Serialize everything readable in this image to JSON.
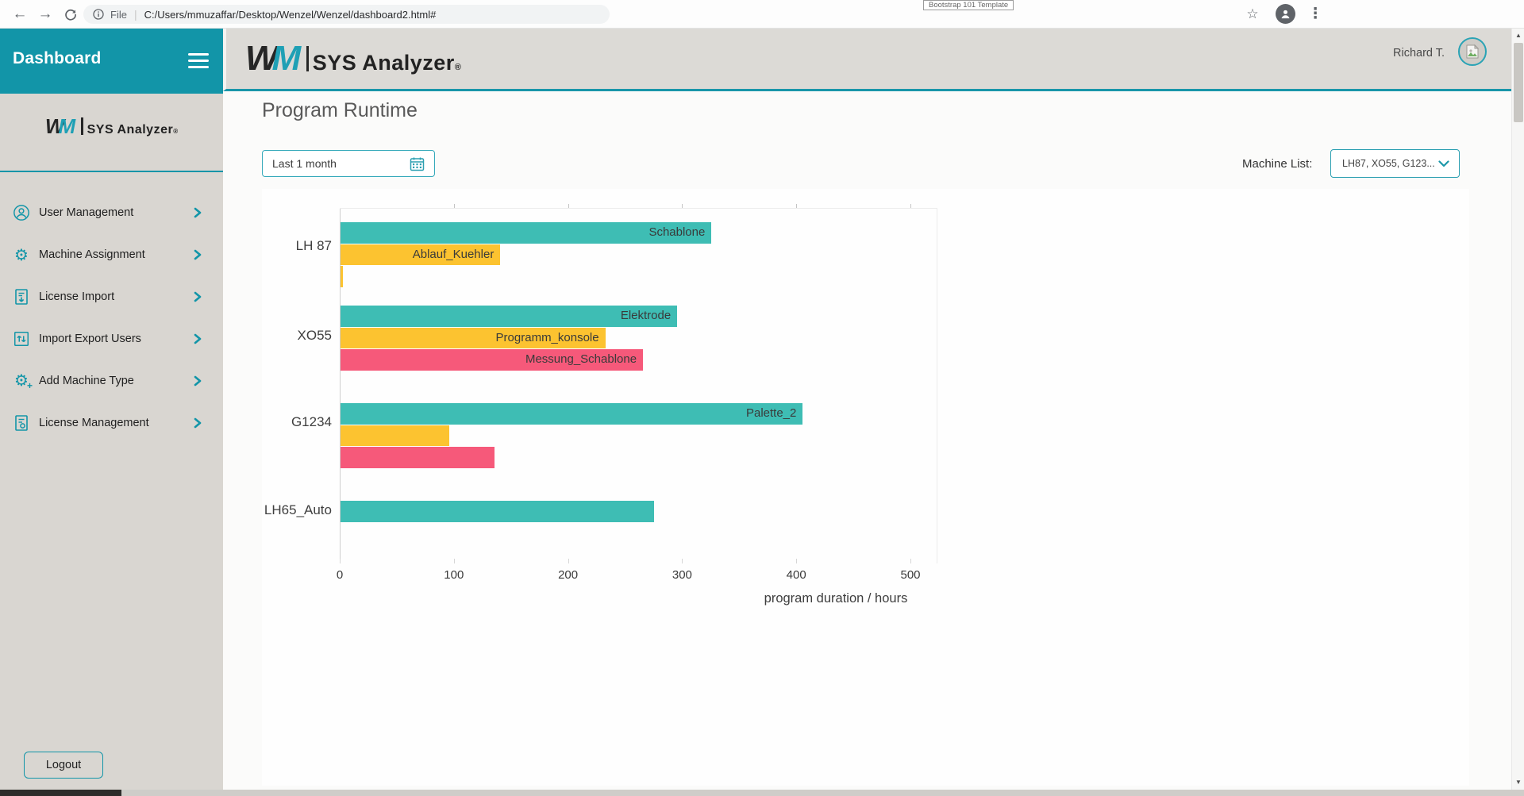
{
  "browser": {
    "back_tooltip": "back",
    "protocol_label": "File",
    "url": "C:/Users/mmuzaffar/Desktop/Wenzel/Wenzel/dashboard2.html#",
    "page_tooltip": "Bootstrap 101 Template"
  },
  "sidebar": {
    "title": "Dashboard",
    "logout_label": "Logout",
    "items": [
      {
        "label": "User Management",
        "icon": "user-icon"
      },
      {
        "label": "Machine Assignment",
        "icon": "gear-icon"
      },
      {
        "label": "License Import",
        "icon": "license-import-icon"
      },
      {
        "label": "Import Export Users",
        "icon": "import-export-icon"
      },
      {
        "label": "Add Machine Type",
        "icon": "add-machine-type-icon"
      },
      {
        "label": "License Management",
        "icon": "license-management-icon"
      }
    ]
  },
  "logo": {
    "w": "W",
    "m": "M",
    "name": "SYS Analyzer",
    "reg": "®"
  },
  "header": {
    "user_name": "Richard T."
  },
  "page": {
    "title": "Program Runtime"
  },
  "filters": {
    "date_range_value": "Last 1 month",
    "machine_list_label": "Machine List:",
    "machine_list_value": "LH87, XO55, G123..."
  },
  "colors": {
    "brand_teal": "#1295a8",
    "bar_teal": "#3ebdb4",
    "bar_yellow": "#fcc330",
    "bar_pink": "#f6597a"
  },
  "chart_data": {
    "type": "bar",
    "orientation": "horizontal",
    "xlabel": "program duration / hours",
    "xlim": [
      0,
      500
    ],
    "xticks": [
      0,
      100,
      200,
      300,
      400,
      500
    ],
    "grid": "ticks-only",
    "legend": "none",
    "categories": [
      "LH 87",
      "XO55",
      "G1234",
      "LH65_Auto"
    ],
    "groups": [
      {
        "machine": "LH 87",
        "bars": [
          {
            "program": "Schablone",
            "hours": 325,
            "color": "teal"
          },
          {
            "program": "Ablauf_Kuehler",
            "hours": 140,
            "color": "yellow"
          },
          {
            "program": "",
            "hours": 2,
            "color": "yellow"
          }
        ]
      },
      {
        "machine": "XO55",
        "bars": [
          {
            "program": "Elektrode",
            "hours": 295,
            "color": "teal"
          },
          {
            "program": "Programm_konsole",
            "hours": 232,
            "color": "yellow"
          },
          {
            "program": "Messung_Schablone",
            "hours": 265,
            "color": "pink"
          }
        ]
      },
      {
        "machine": "G1234",
        "bars": [
          {
            "program": "Palette_2",
            "hours": 405,
            "color": "teal"
          },
          {
            "program": "",
            "hours": 95,
            "color": "yellow"
          },
          {
            "program": "",
            "hours": 135,
            "color": "pink"
          }
        ]
      },
      {
        "machine": "LH65_Auto",
        "bars": [
          {
            "program": "",
            "hours": 275,
            "color": "teal"
          }
        ]
      }
    ]
  }
}
